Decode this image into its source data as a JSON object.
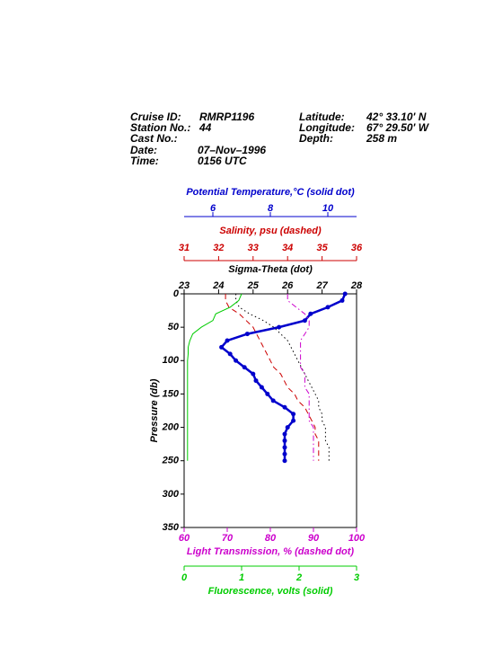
{
  "header": {
    "fields": [
      {
        "label": "Cruise ID:",
        "value": "RMRP1196"
      },
      {
        "label": "Station No.:",
        "value": "44"
      },
      {
        "label": "Cast No.:"
      },
      {
        "label": "Date:",
        "value": "07–Nov–1996"
      },
      {
        "label": "Time:",
        "value": "0156 UTC"
      },
      {
        "label": "Latitude:",
        "value": "42° 33.10' N"
      },
      {
        "label": "Longitude:",
        "value": "67° 29.50' W"
      },
      {
        "label": "Depth:",
        "value": "258 m"
      }
    ]
  },
  "chart_data": {
    "type": "profile",
    "ylabel": "Pressure (db)",
    "ylim": [
      0,
      350
    ],
    "yticks": [
      0,
      50,
      100,
      150,
      200,
      250,
      300,
      350
    ],
    "pressure": [
      0,
      10,
      20,
      30,
      40,
      50,
      60,
      70,
      80,
      90,
      100,
      110,
      120,
      130,
      140,
      150,
      160,
      170,
      180,
      190,
      200,
      210,
      220,
      230,
      240,
      250
    ],
    "series": [
      {
        "name": "Potential Temperature,°C (solid dot)",
        "color": "#0000cc",
        "style": "solid-dot",
        "side": "top",
        "xlim": [
          5,
          11
        ],
        "xticks": [
          6,
          8,
          10
        ],
        "values": [
          10.6,
          10.5,
          10.0,
          9.4,
          9.2,
          8.3,
          7.2,
          6.5,
          6.3,
          6.6,
          6.8,
          7.1,
          7.4,
          7.5,
          7.7,
          7.9,
          8.1,
          8.5,
          8.8,
          8.8,
          8.6,
          8.5,
          8.5,
          8.5,
          8.5,
          8.5
        ]
      },
      {
        "name": "Salinity, psu  (dashed)",
        "color": "#cc0000",
        "style": "dashed",
        "side": "top",
        "xlim": [
          31,
          36
        ],
        "xticks": [
          31,
          32,
          33,
          34,
          35,
          36
        ],
        "values": [
          32.2,
          32.2,
          32.3,
          32.6,
          32.8,
          33.0,
          33.1,
          33.2,
          33.3,
          33.4,
          33.5,
          33.6,
          33.8,
          33.9,
          34.0,
          34.2,
          34.3,
          34.5,
          34.6,
          34.7,
          34.8,
          34.8,
          34.9,
          34.9,
          34.9,
          34.9
        ]
      },
      {
        "name": "Sigma-Theta (dot)",
        "color": "#000000",
        "style": "dot",
        "side": "top",
        "xlim": [
          23,
          28
        ],
        "xticks": [
          23,
          24,
          25,
          26,
          27,
          28
        ],
        "values": [
          24.5,
          24.5,
          24.6,
          24.9,
          25.3,
          25.6,
          25.8,
          26.0,
          26.1,
          26.2,
          26.3,
          26.4,
          26.5,
          26.6,
          26.7,
          26.8,
          26.9,
          26.9,
          27.0,
          27.0,
          27.1,
          27.1,
          27.1,
          27.2,
          27.2,
          27.2
        ]
      },
      {
        "name": "Light Transmission, % (dashed dot)",
        "color": "#cc00cc",
        "style": "dash-dot",
        "side": "bottom",
        "xlim": [
          60,
          100
        ],
        "xticks": [
          60,
          70,
          80,
          90,
          100
        ],
        "values": [
          84,
          84,
          86,
          88,
          89,
          89,
          88,
          87,
          87,
          87,
          87,
          87,
          88,
          88,
          88,
          89,
          89,
          89,
          89,
          89,
          90,
          90,
          90,
          90,
          90,
          90
        ]
      },
      {
        "name": "Fluorescence, volts (solid)",
        "color": "#00cc00",
        "style": "solid",
        "side": "bottom",
        "xlim": [
          0,
          3
        ],
        "xticks": [
          0,
          1,
          2,
          3
        ],
        "values": [
          1.0,
          0.95,
          0.8,
          0.55,
          0.5,
          0.3,
          0.15,
          0.1,
          0.07,
          0.07,
          0.06,
          0.06,
          0.06,
          0.06,
          0.06,
          0.06,
          0.06,
          0.06,
          0.06,
          0.06,
          0.06,
          0.06,
          0.06,
          0.06,
          0.06,
          0.06
        ]
      }
    ]
  }
}
